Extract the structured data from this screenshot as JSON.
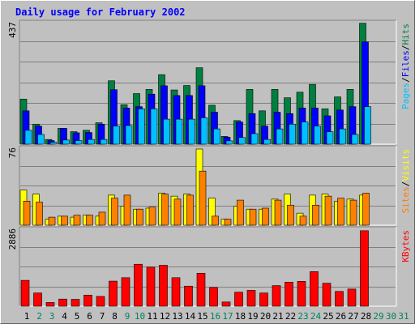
{
  "title": "Daily usage for February 2002",
  "colors": {
    "hits": "#008040",
    "files": "#0000ff",
    "pages": "#00c0ff",
    "visits": "#ffff00",
    "sites": "#ff8000",
    "kbytes": "#ff0000",
    "title": "#0000ff",
    "weekday": "#000000",
    "weekend": "#00805c"
  },
  "chart_data": [
    {
      "type": "bar",
      "name": "hits-files-pages",
      "categories": [
        "1",
        "2",
        "3",
        "4",
        "5",
        "6",
        "7",
        "8",
        "9",
        "10",
        "11",
        "12",
        "13",
        "14",
        "15",
        "16",
        "17",
        "18",
        "19",
        "20",
        "21",
        "22",
        "23",
        "24",
        "25",
        "26",
        "27",
        "28",
        "29",
        "30",
        "31"
      ],
      "weekend": [
        false,
        true,
        true,
        false,
        false,
        false,
        false,
        false,
        true,
        true,
        false,
        false,
        false,
        false,
        false,
        true,
        true,
        false,
        false,
        false,
        false,
        false,
        true,
        true,
        false,
        false,
        false,
        false,
        true,
        true,
        true
      ],
      "ymax_label": "437",
      "ylim": [
        0,
        437
      ],
      "legend": [
        "Pages",
        "/",
        "Files",
        "/",
        "Hits"
      ],
      "series": [
        {
          "name": "Hits",
          "values": [
            162,
            72,
            17,
            57,
            45,
            50,
            77,
            228,
            142,
            182,
            197,
            250,
            195,
            211,
            275,
            140,
            28,
            85,
            197,
            120,
            197,
            167,
            187,
            215,
            127,
            170,
            197,
            435,
            0,
            0,
            0
          ]
        },
        {
          "name": "Files",
          "values": [
            120,
            65,
            13,
            57,
            41,
            42,
            72,
            196,
            130,
            135,
            180,
            210,
            175,
            175,
            210,
            115,
            25,
            80,
            110,
            65,
            115,
            110,
            130,
            130,
            102,
            123,
            135,
            368,
            0,
            0,
            0
          ]
        },
        {
          "name": "Pages",
          "values": [
            50,
            35,
            7,
            15,
            13,
            17,
            17,
            65,
            67,
            127,
            127,
            90,
            90,
            90,
            95,
            55,
            12,
            24,
            38,
            17,
            55,
            72,
            80,
            65,
            45,
            55,
            35,
            135,
            0,
            0,
            0
          ]
        }
      ]
    },
    {
      "type": "bar",
      "name": "visits-sites",
      "categories": [
        "1",
        "2",
        "3",
        "4",
        "5",
        "6",
        "7",
        "8",
        "9",
        "10",
        "11",
        "12",
        "13",
        "14",
        "15",
        "16",
        "17",
        "18",
        "19",
        "20",
        "21",
        "22",
        "23",
        "24",
        "25",
        "26",
        "27",
        "28",
        "29",
        "30",
        "31"
      ],
      "ymax_label": "76",
      "ylim": [
        0,
        76
      ],
      "legend": [
        "Sites",
        "/",
        "Visits"
      ],
      "series": [
        {
          "name": "Visits",
          "values": [
            35,
            31,
            6,
            9,
            8,
            10,
            9,
            30,
            19,
            16,
            17,
            32,
            29,
            31,
            76,
            27,
            6,
            19,
            16,
            16,
            26,
            31,
            12,
            30,
            31,
            24,
            26,
            30,
            0,
            0,
            0
          ]
        },
        {
          "name": "Sites",
          "values": [
            24,
            23,
            8,
            9,
            10,
            10,
            13,
            27,
            30,
            16,
            18,
            31,
            26,
            30,
            54,
            9,
            6,
            25,
            16,
            17,
            25,
            20,
            9,
            20,
            29,
            27,
            25,
            32,
            0,
            0,
            0
          ]
        }
      ]
    },
    {
      "type": "bar",
      "name": "kbytes",
      "categories": [
        "1",
        "2",
        "3",
        "4",
        "5",
        "6",
        "7",
        "8",
        "9",
        "10",
        "11",
        "12",
        "13",
        "14",
        "15",
        "16",
        "17",
        "18",
        "19",
        "20",
        "21",
        "22",
        "23",
        "24",
        "25",
        "26",
        "27",
        "28",
        "29",
        "30",
        "31"
      ],
      "ymax_label": "2886",
      "ylim": [
        0,
        2886
      ],
      "legend": [
        "KBytes"
      ],
      "series": [
        {
          "name": "KBytes",
          "values": [
            980,
            500,
            140,
            270,
            260,
            420,
            370,
            950,
            1080,
            1590,
            1480,
            1550,
            1080,
            760,
            1250,
            710,
            160,
            530,
            600,
            500,
            780,
            910,
            940,
            1310,
            870,
            560,
            650,
            2860,
            0,
            0,
            0
          ]
        }
      ]
    }
  ]
}
